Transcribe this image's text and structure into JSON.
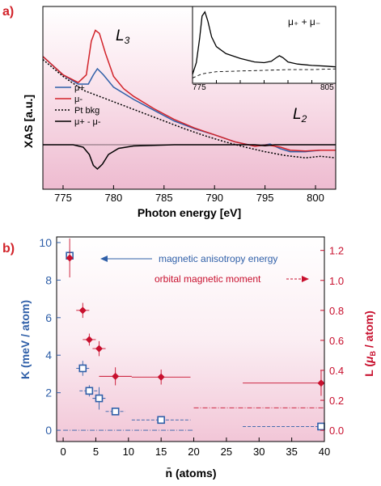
{
  "panels": {
    "a_label": "a)",
    "b_label": "b)"
  },
  "colors": {
    "mu_plus": "#2f5fa8",
    "mu_minus": "#d2232a",
    "bkg": "#000000",
    "diff": "#000000",
    "K": "#2f5fa8",
    "L": "#c8102e",
    "shade": "#eebbd0"
  },
  "chart_data": [
    {
      "type": "line",
      "ylabel": "XAS [a.u.]",
      "xlabel": "Photon energy [eV]",
      "xlim": [
        773,
        802
      ],
      "xticks": [
        775,
        780,
        785,
        790,
        795,
        800
      ],
      "yticks_shown": false,
      "grid": false,
      "legend_position": "left-middle",
      "annotations": [
        {
          "text": "L",
          "sub": "3",
          "x": 780.5
        },
        {
          "text": "L",
          "sub": "2",
          "x": 797.2
        }
      ],
      "series": [
        {
          "name": "μ+",
          "style": "solid",
          "color_key": "mu_plus",
          "x": [
            773,
            775,
            776.5,
            777.5,
            778.0,
            778.4,
            779.0,
            780.0,
            781,
            782,
            784,
            786,
            788,
            790,
            792,
            794,
            795,
            795.5,
            796.5,
            797.5,
            799,
            800.5,
            802
          ],
          "y": [
            0.78,
            0.66,
            0.6,
            0.6,
            0.66,
            0.7,
            0.66,
            0.58,
            0.54,
            0.5,
            0.43,
            0.36,
            0.31,
            0.27,
            0.225,
            0.197,
            0.205,
            0.21,
            0.18,
            0.16,
            0.16,
            0.17,
            0.17
          ]
        },
        {
          "name": "μ-",
          "style": "solid",
          "color_key": "mu_minus",
          "x": [
            773,
            775,
            776.5,
            777.3,
            777.8,
            778.2,
            778.6,
            779.2,
            780.0,
            781,
            782,
            784,
            786,
            788,
            790,
            792,
            794,
            795.2,
            796.5,
            797.5,
            799,
            800.5,
            802
          ],
          "y": [
            0.78,
            0.66,
            0.61,
            0.66,
            0.88,
            0.95,
            0.93,
            0.8,
            0.65,
            0.57,
            0.52,
            0.44,
            0.37,
            0.315,
            0.27,
            0.225,
            0.195,
            0.205,
            0.19,
            0.17,
            0.165,
            0.17,
            0.17
          ]
        },
        {
          "name": "Pt bkg",
          "style": "dotted",
          "color_key": "bkg",
          "x": [
            773,
            775,
            777,
            779,
            781,
            783,
            785,
            787,
            789,
            791,
            793,
            795,
            797,
            799,
            800.5,
            802
          ],
          "y": [
            0.76,
            0.65,
            0.56,
            0.51,
            0.46,
            0.41,
            0.36,
            0.31,
            0.265,
            0.225,
            0.19,
            0.16,
            0.135,
            0.12,
            0.13,
            0.12
          ]
        },
        {
          "name": "μ+ - μ-",
          "style": "solid",
          "color_key": "diff",
          "x": [
            773,
            776,
            777.0,
            777.6,
            778.0,
            778.4,
            778.9,
            779.5,
            780.5,
            782,
            786,
            790,
            794,
            795,
            796,
            798,
            802
          ],
          "y": [
            0.0,
            0.0,
            -0.02,
            -0.08,
            -0.17,
            -0.2,
            -0.16,
            -0.08,
            -0.03,
            -0.01,
            0.0,
            0.0,
            0.0,
            -0.008,
            0.0,
            0.0,
            0.0
          ]
        }
      ],
      "inset": {
        "label": "μ₊ + μ₋",
        "xtick_labels": [
          "775",
          "805"
        ],
        "xlim": [
          775,
          805
        ],
        "series": [
          {
            "style": "solid",
            "x": [
              775,
              775.8,
              776.5,
              777.0,
              777.6,
              778.2,
              779,
              780,
              782,
              785,
              788,
              790,
              791.5,
              792.5,
              793.2,
              794.0,
              795.0,
              797,
              800,
              803,
              805
            ],
            "y": [
              0.08,
              0.25,
              0.6,
              0.92,
              0.98,
              0.85,
              0.62,
              0.48,
              0.38,
              0.31,
              0.26,
              0.25,
              0.27,
              0.32,
              0.35,
              0.32,
              0.26,
              0.23,
              0.21,
              0.2,
              0.19
            ]
          },
          {
            "style": "dashed",
            "x": [
              775,
              777,
              780,
              785,
              790,
              795,
              800,
              805
            ],
            "y": [
              0.03,
              0.09,
              0.12,
              0.13,
              0.14,
              0.15,
              0.15,
              0.16
            ]
          }
        ]
      }
    },
    {
      "type": "scatter",
      "xlabel": "n̄ (atoms)",
      "ylabel_left": "K (meV / atom)",
      "ylabel_right": "L (μB / atom)",
      "xlim": [
        -1,
        40
      ],
      "xticks": [
        0,
        5,
        10,
        15,
        20,
        25,
        30,
        35,
        40
      ],
      "ylim_left": [
        -0.6,
        10.3
      ],
      "yticks_left": [
        0,
        2,
        4,
        6,
        8,
        10
      ],
      "ylim_right": [
        -0.075,
        1.29
      ],
      "yticks_right": [
        "0.0",
        "0.2",
        "0.4",
        "0.6",
        "0.8",
        "1.0",
        "1.2"
      ],
      "grid": false,
      "annotations": [
        {
          "text": "magnetic anisotropy energy",
          "color_key": "K"
        },
        {
          "text": "orbital magnetic moment",
          "color_key": "L"
        }
      ],
      "series": [
        {
          "name": "K",
          "axis": "left",
          "marker": "open-square",
          "color_key": "K",
          "points": [
            {
              "x": 1,
              "y": 9.3,
              "xerr": 0.4,
              "yerr": 0.3
            },
            {
              "x": 3,
              "y": 3.3,
              "xerr": 1.0,
              "yerr": 0.4
            },
            {
              "x": 4,
              "y": 2.1,
              "xerr": 1.5,
              "yerr": 0.3
            },
            {
              "x": 5.5,
              "y": 1.7,
              "xerr": 1.0,
              "yerr": 0.6
            },
            {
              "x": 8,
              "y": 1.0,
              "xerr": 1.5,
              "yerr": 0.2
            },
            {
              "x": 15,
              "y": 0.55,
              "xerr": 4.5,
              "yerr": 0.15
            },
            {
              "x": 39.5,
              "y": 0.2,
              "xerr": 12,
              "yerr": 0.1
            }
          ]
        },
        {
          "name": "L",
          "axis": "right",
          "marker": "filled-diamond",
          "color_key": "L",
          "points": [
            {
              "x": 1,
              "y": 1.15,
              "xerr": 0.4,
              "yerr": 0.13
            },
            {
              "x": 3,
              "y": 0.8,
              "xerr": 1.0,
              "yerr": 0.05
            },
            {
              "x": 4,
              "y": 0.605,
              "xerr": 1.0,
              "yerr": 0.04
            },
            {
              "x": 5.5,
              "y": 0.545,
              "xerr": 1.0,
              "yerr": 0.05
            },
            {
              "x": 8,
              "y": 0.36,
              "xerr": 2.5,
              "yerr": 0.06
            },
            {
              "x": 15,
              "y": 0.355,
              "xerr": 4.5,
              "yerr": 0.05
            },
            {
              "x": 39.5,
              "y": 0.315,
              "xerr": 12,
              "yerr": 0.085
            }
          ]
        }
      ],
      "reference_lines": [
        {
          "axis": "left",
          "y": 0.0,
          "style": "dash-dot",
          "color_key": "K",
          "from_x": 0,
          "to_x": 20
        },
        {
          "axis": "right",
          "y": 0.15,
          "style": "dash-dot",
          "color_key": "L",
          "from_x": 20,
          "to_x": 40
        }
      ]
    }
  ]
}
